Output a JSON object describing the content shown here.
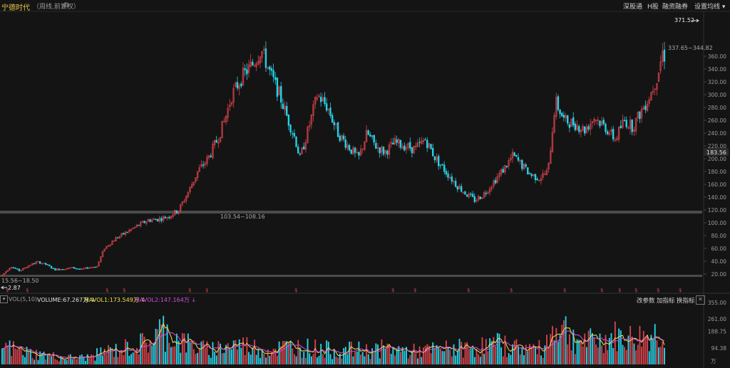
{
  "header": {
    "stock_name": "宁德时代",
    "subtitle": "（周线,前复权）",
    "menu": [
      "深股通",
      "H股",
      "融资融券",
      "设置均线 ▾"
    ]
  },
  "price_axis": {
    "ticks": [
      "360.00",
      "340.00",
      "320.00",
      "300.00",
      "280.00",
      "260.00",
      "240.00",
      "220.00",
      "200.00",
      "180.00",
      "160.00",
      "140.00",
      "120.00",
      "100.00",
      "80.00",
      "60.00",
      "40.00",
      "20.00"
    ],
    "current_price": "183.56"
  },
  "annotations": {
    "high_label": "371.52",
    "recent_range": "337.65~344.82",
    "mid_range": "103.54~108.16",
    "low_range": "15.56~18.50",
    "low_label": "2.87"
  },
  "markers": {
    "glyph": "$"
  },
  "volume": {
    "indicator": "VOL(5,10)",
    "volume_label": "VOLUME:67.267万 ↓",
    "mavol1_label": "MAVOL1:173.549万 ↓",
    "mavol2_label": "MAVOL2:147.164万 ↓",
    "buttons": [
      "改参数",
      "加指标",
      "换指标"
    ],
    "close_glyph": "✕",
    "toggle_glyph": "▾",
    "ticks": [
      "355.00",
      "261.00",
      "188.75",
      "94.38"
    ],
    "unit": "万"
  },
  "colors": {
    "up": "#d3424b",
    "down": "#26d1e6",
    "mavol1": "#f0e14a",
    "mavol2": "#d14ee0",
    "accent": "#e8c547"
  },
  "chart_data": {
    "type": "candlestick",
    "title": "宁德时代（周线,前复权）",
    "ylim": [
      2.87,
      371.52
    ],
    "price_anchors": [
      [
        0,
        18
      ],
      [
        12,
        32
      ],
      [
        24,
        25
      ],
      [
        36,
        33
      ],
      [
        48,
        39
      ],
      [
        60,
        35
      ],
      [
        72,
        27
      ],
      [
        84,
        28
      ],
      [
        96,
        30
      ],
      [
        108,
        27
      ],
      [
        118,
        30
      ],
      [
        130,
        32
      ],
      [
        140,
        60
      ],
      [
        155,
        75
      ],
      [
        170,
        85
      ],
      [
        185,
        95
      ],
      [
        200,
        104
      ],
      [
        215,
        106
      ],
      [
        228,
        110
      ],
      [
        242,
        120
      ],
      [
        256,
        150
      ],
      [
        268,
        180
      ],
      [
        282,
        200
      ],
      [
        295,
        230
      ],
      [
        305,
        260
      ],
      [
        315,
        300
      ],
      [
        330,
        330
      ],
      [
        345,
        350
      ],
      [
        355,
        371
      ],
      [
        365,
        340
      ],
      [
        380,
        300
      ],
      [
        392,
        260
      ],
      [
        402,
        230
      ],
      [
        408,
        200
      ],
      [
        418,
        240
      ],
      [
        432,
        300
      ],
      [
        446,
        280
      ],
      [
        460,
        240
      ],
      [
        474,
        220
      ],
      [
        488,
        200
      ],
      [
        500,
        240
      ],
      [
        512,
        220
      ],
      [
        524,
        210
      ],
      [
        538,
        225
      ],
      [
        552,
        220
      ],
      [
        566,
        215
      ],
      [
        580,
        230
      ],
      [
        594,
        200
      ],
      [
        608,
        180
      ],
      [
        622,
        160
      ],
      [
        636,
        145
      ],
      [
        648,
        135
      ],
      [
        660,
        145
      ],
      [
        674,
        165
      ],
      [
        688,
        185
      ],
      [
        700,
        205
      ],
      [
        712,
        190
      ],
      [
        724,
        175
      ],
      [
        736,
        170
      ],
      [
        748,
        180
      ],
      [
        758,
        290
      ],
      [
        770,
        260
      ],
      [
        784,
        255
      ],
      [
        798,
        245
      ],
      [
        812,
        265
      ],
      [
        826,
        250
      ],
      [
        840,
        230
      ],
      [
        852,
        260
      ],
      [
        864,
        250
      ],
      [
        876,
        275
      ],
      [
        888,
        300
      ],
      [
        898,
        330
      ],
      [
        906,
        372
      ],
      [
        910,
        340
      ]
    ],
    "volume_anchors": [
      [
        0,
        100
      ],
      [
        20,
        80
      ],
      [
        40,
        60
      ],
      [
        60,
        50
      ],
      [
        80,
        40
      ],
      [
        100,
        35
      ],
      [
        120,
        40
      ],
      [
        140,
        70
      ],
      [
        160,
        80
      ],
      [
        180,
        100
      ],
      [
        200,
        120
      ],
      [
        220,
        190
      ],
      [
        240,
        140
      ],
      [
        260,
        100
      ],
      [
        280,
        80
      ],
      [
        300,
        95
      ],
      [
        320,
        110
      ],
      [
        340,
        100
      ],
      [
        360,
        80
      ],
      [
        380,
        90
      ],
      [
        400,
        100
      ],
      [
        420,
        90
      ],
      [
        440,
        85
      ],
      [
        460,
        70
      ],
      [
        480,
        80
      ],
      [
        500,
        75
      ],
      [
        520,
        85
      ],
      [
        540,
        80
      ],
      [
        560,
        70
      ],
      [
        580,
        75
      ],
      [
        600,
        80
      ],
      [
        620,
        90
      ],
      [
        640,
        85
      ],
      [
        660,
        100
      ],
      [
        680,
        110
      ],
      [
        700,
        95
      ],
      [
        720,
        90
      ],
      [
        740,
        80
      ],
      [
        760,
        230
      ],
      [
        770,
        200
      ],
      [
        780,
        150
      ],
      [
        800,
        120
      ],
      [
        820,
        130
      ],
      [
        840,
        150
      ],
      [
        860,
        140
      ],
      [
        880,
        150
      ],
      [
        900,
        170
      ],
      [
        910,
        190
      ]
    ],
    "marker_x": [
      8,
      36,
      148,
      172,
      264,
      288,
      413,
      549,
      580,
      655,
      715,
      790,
      842,
      867,
      890,
      921,
      952
    ]
  }
}
